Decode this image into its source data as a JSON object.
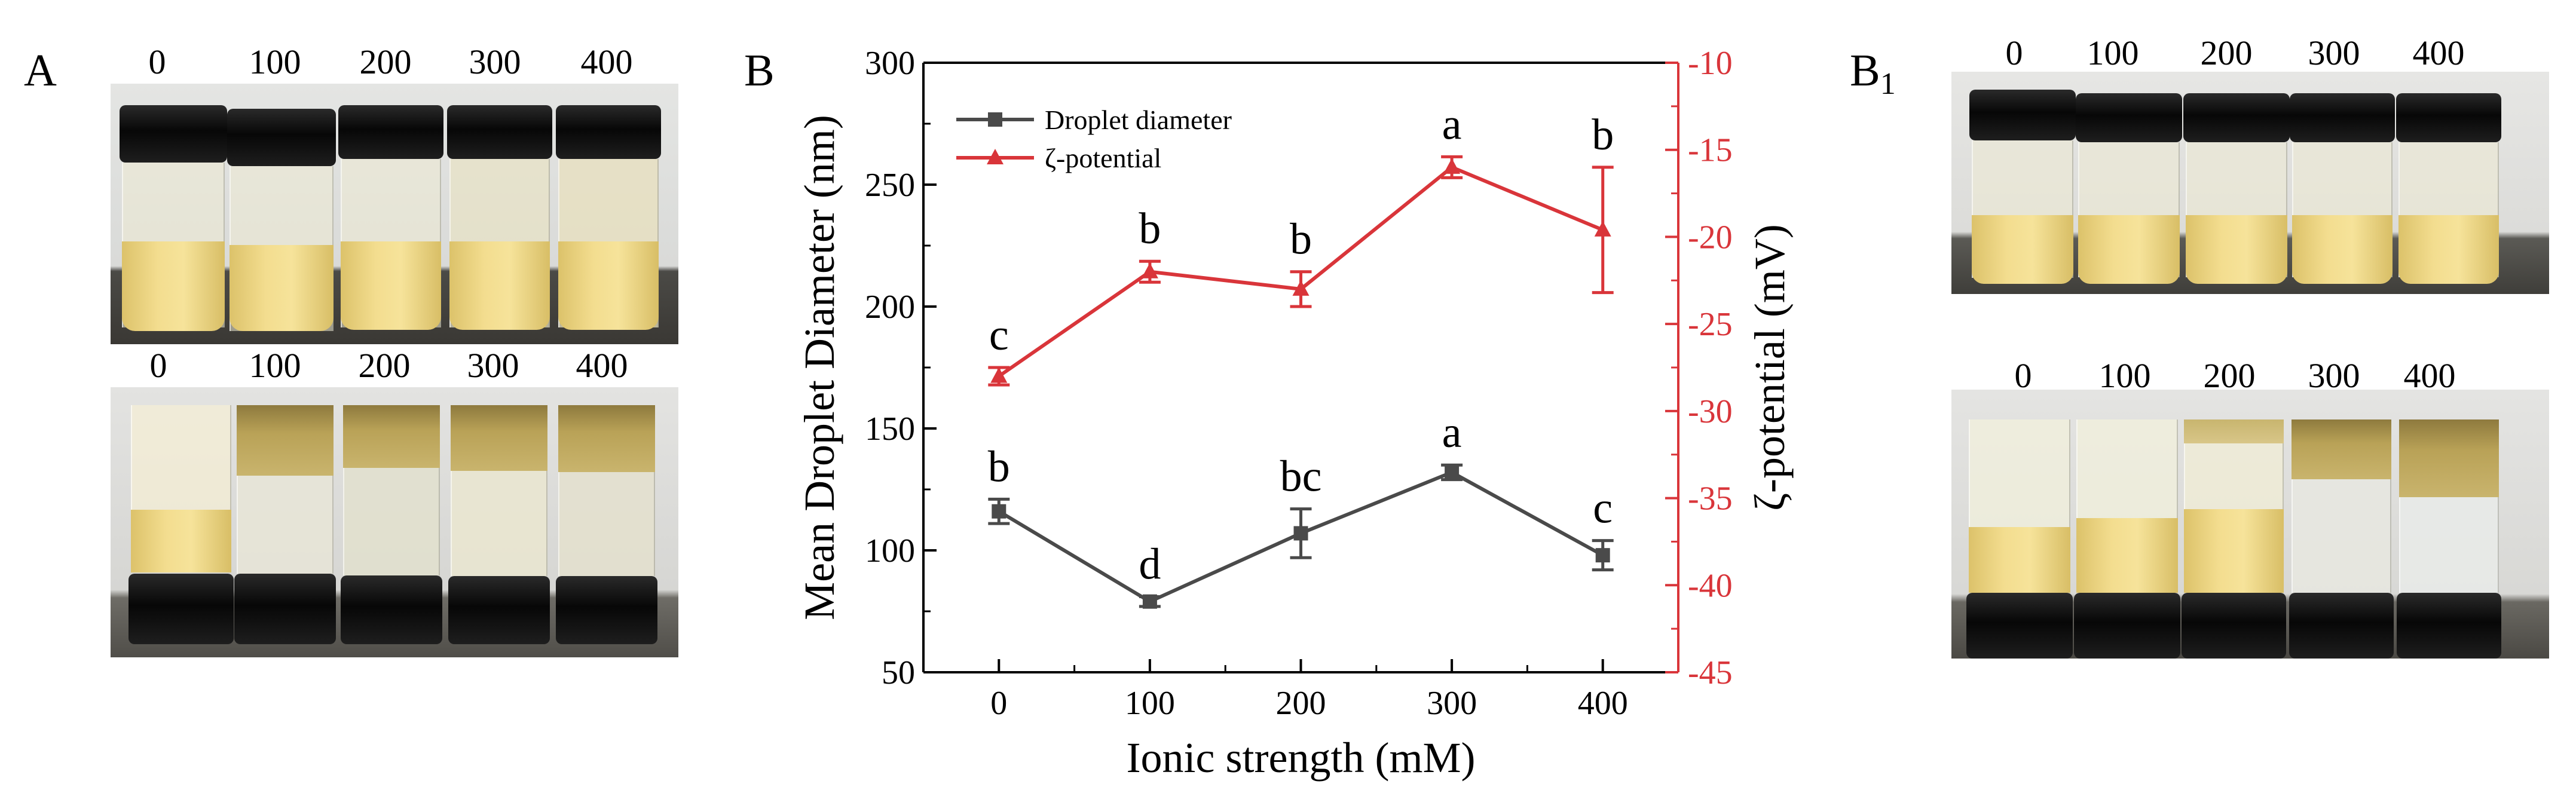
{
  "panels": {
    "A": {
      "letter": "A",
      "top_labels": [
        "0",
        "100",
        "200",
        "300",
        "400"
      ],
      "bottom_labels": [
        "0",
        "100",
        "200",
        "300",
        "400"
      ]
    },
    "B": {
      "letter": "B"
    },
    "B1": {
      "letter": "B",
      "letter_sub": "1",
      "top_labels": [
        "0",
        "100",
        "200",
        "300",
        "400"
      ],
      "bottom_labels": [
        "0",
        "100",
        "200",
        "300",
        "400"
      ]
    }
  },
  "colors": {
    "diameter": "#4a4a4a",
    "zeta": "#d9353a",
    "axis": "#000000"
  },
  "chart_data": {
    "type": "line",
    "xlabel": "Ionic strength (mM)",
    "ylabel": "Mean Droplet Diameter (nm)",
    "y2label": "ζ-potential (mV)",
    "x": [
      0,
      100,
      200,
      300,
      400
    ],
    "xlim": [
      -50,
      450
    ],
    "xticks": [
      "0",
      "100",
      "200",
      "300",
      "400"
    ],
    "ylim": [
      50,
      300
    ],
    "yticks": [
      "50",
      "100",
      "150",
      "200",
      "250",
      "300"
    ],
    "y2lim": [
      -45,
      -10
    ],
    "y2ticks": [
      "-45",
      "-40",
      "-35",
      "-30",
      "-25",
      "-20",
      "-15",
      "-10"
    ],
    "legend_position": "top-left",
    "series": [
      {
        "name": "Droplet diameter",
        "axis": "left",
        "marker": "square",
        "values": [
          116,
          79,
          107,
          132,
          98
        ],
        "errors": [
          5,
          2,
          10,
          3,
          6
        ],
        "letters": [
          "b",
          "d",
          "bc",
          "a",
          "c"
        ]
      },
      {
        "name": "ζ-potential",
        "axis": "right",
        "marker": "triangle",
        "values": [
          -28,
          -22,
          -23,
          -16,
          -19.6
        ],
        "errors": [
          0.5,
          0.6,
          1.0,
          0.6,
          3.6
        ],
        "letters": [
          "c",
          "b",
          "b",
          "a",
          "b"
        ]
      }
    ]
  }
}
